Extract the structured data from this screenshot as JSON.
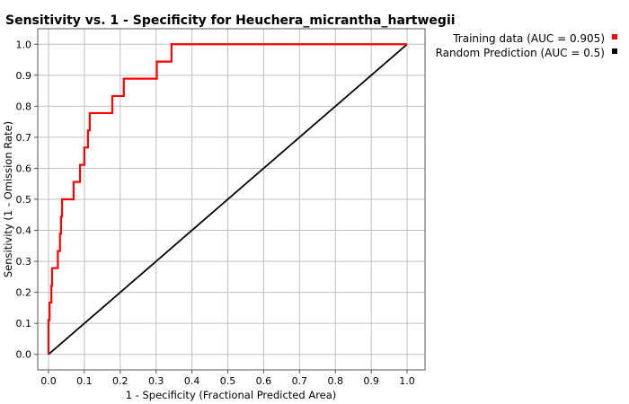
{
  "chart_data": {
    "type": "line",
    "title": "Sensitivity vs. 1 - Specificity for Heuchera_micrantha_hartwegii",
    "xlabel": "1 - Specificity  (Fractional Predicted Area)",
    "ylabel": "Sensitivity  (1 - Omission Rate)",
    "xlim": [
      -0.03,
      1.05
    ],
    "ylim": [
      -0.05,
      1.05
    ],
    "x_ticks": [
      "0.0",
      "0.1",
      "0.2",
      "0.3",
      "0.4",
      "0.5",
      "0.6",
      "0.7",
      "0.8",
      "0.9",
      "1.0"
    ],
    "y_ticks": [
      "0.0",
      "0.1",
      "0.2",
      "0.3",
      "0.4",
      "0.5",
      "0.6",
      "0.7",
      "0.8",
      "0.9",
      "1.0"
    ],
    "grid": true,
    "legend_position": "top-right-outside",
    "series": [
      {
        "name": "Training data (AUC = 0.905)",
        "color": "#ff0000",
        "x": [
          0.0,
          0.0,
          0.003,
          0.003,
          0.008,
          0.008,
          0.01,
          0.01,
          0.013,
          0.013,
          0.016,
          0.016,
          0.026,
          0.026,
          0.032,
          0.032,
          0.035,
          0.035,
          0.038,
          0.038,
          0.07,
          0.07,
          0.088,
          0.088,
          0.1,
          0.1,
          0.11,
          0.11,
          0.115,
          0.115,
          0.178,
          0.178,
          0.21,
          0.21,
          0.302,
          0.302,
          0.343,
          0.343,
          1.0
        ],
        "y": [
          0.0,
          0.111,
          0.111,
          0.167,
          0.167,
          0.222,
          0.222,
          0.278,
          0.278,
          0.278,
          0.278,
          0.278,
          0.278,
          0.333,
          0.333,
          0.389,
          0.389,
          0.444,
          0.444,
          0.5,
          0.5,
          0.556,
          0.556,
          0.611,
          0.611,
          0.667,
          0.667,
          0.722,
          0.722,
          0.778,
          0.778,
          0.833,
          0.833,
          0.889,
          0.889,
          0.944,
          0.944,
          1.0,
          1.0
        ]
      },
      {
        "name": "Random Prediction (AUC = 0.5)",
        "color": "#000000",
        "x": [
          0.0,
          1.0
        ],
        "y": [
          0.0,
          1.0
        ]
      }
    ]
  }
}
